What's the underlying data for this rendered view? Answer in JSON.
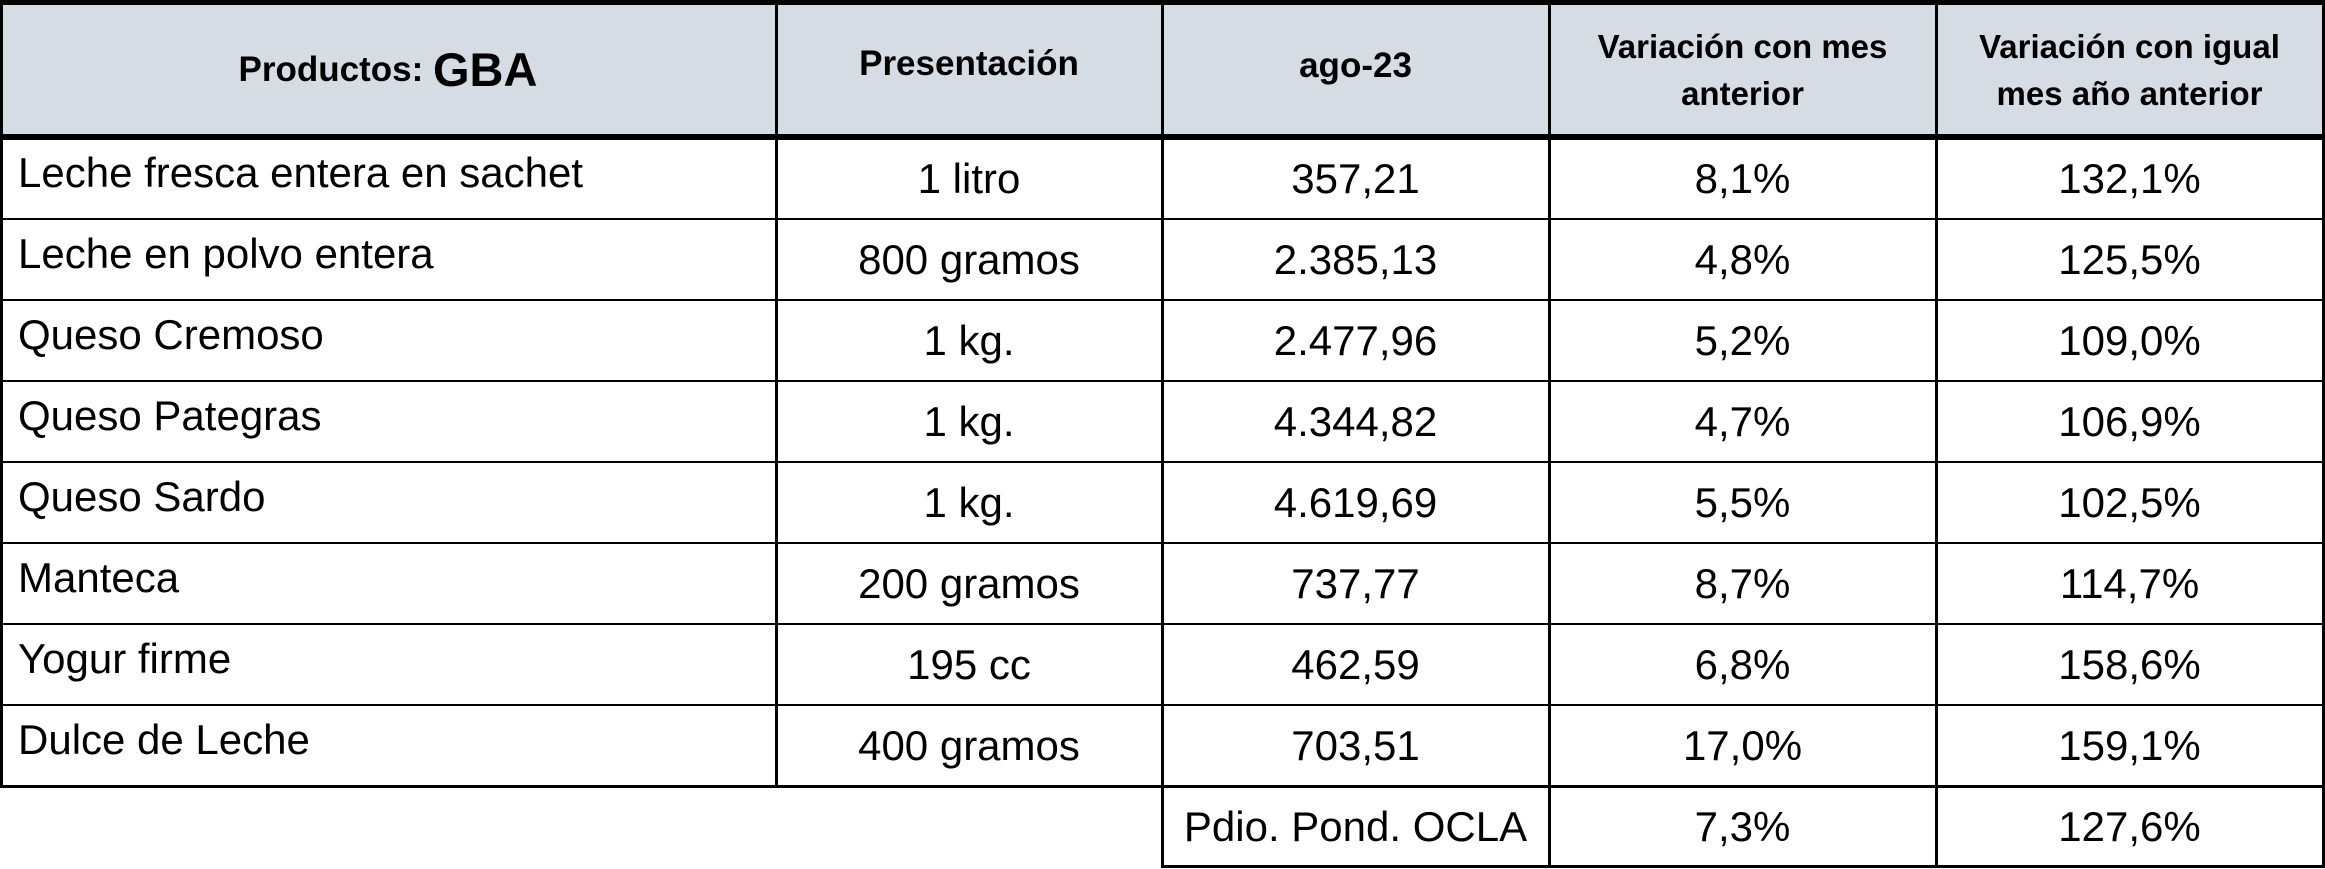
{
  "header": {
    "productos_label": "Productos:",
    "region": "GBA",
    "presentacion": "Presentación",
    "period": "ago-23",
    "var_mes_line1": "Variación con mes",
    "var_mes_line2": "anterior",
    "var_anio_line1": "Variación con igual",
    "var_anio_line2": "mes año anterior"
  },
  "rows": [
    {
      "producto": "Leche fresca entera en sachet",
      "presentacion": "1 litro",
      "precio": "357,21",
      "var_mes": "8,1%",
      "var_anio": "132,1%"
    },
    {
      "producto": "Leche en polvo entera",
      "presentacion": "800 gramos",
      "precio": "2.385,13",
      "var_mes": "4,8%",
      "var_anio": "125,5%"
    },
    {
      "producto": "Queso Cremoso",
      "presentacion": "1 kg.",
      "precio": "2.477,96",
      "var_mes": "5,2%",
      "var_anio": "109,0%"
    },
    {
      "producto": "Queso Pategras",
      "presentacion": "1 kg.",
      "precio": "4.344,82",
      "var_mes": "4,7%",
      "var_anio": "106,9%"
    },
    {
      "producto": "Queso Sardo",
      "presentacion": "1 kg.",
      "precio": "4.619,69",
      "var_mes": "5,5%",
      "var_anio": "102,5%"
    },
    {
      "producto": "Manteca",
      "presentacion": "200 gramos",
      "precio": "737,77",
      "var_mes": "8,7%",
      "var_anio": "114,7%"
    },
    {
      "producto": "Yogur firme",
      "presentacion": "195 cc",
      "precio": "462,59",
      "var_mes": "6,8%",
      "var_anio": "158,6%"
    },
    {
      "producto": "Dulce de Leche",
      "presentacion": "400 gramos",
      "precio": "703,51",
      "var_mes": "17,0%",
      "var_anio": "159,1%"
    }
  ],
  "footer": {
    "label": "Pdio. Pond. OCLA",
    "var_mes": "7,3%",
    "var_anio": "127,6%"
  }
}
